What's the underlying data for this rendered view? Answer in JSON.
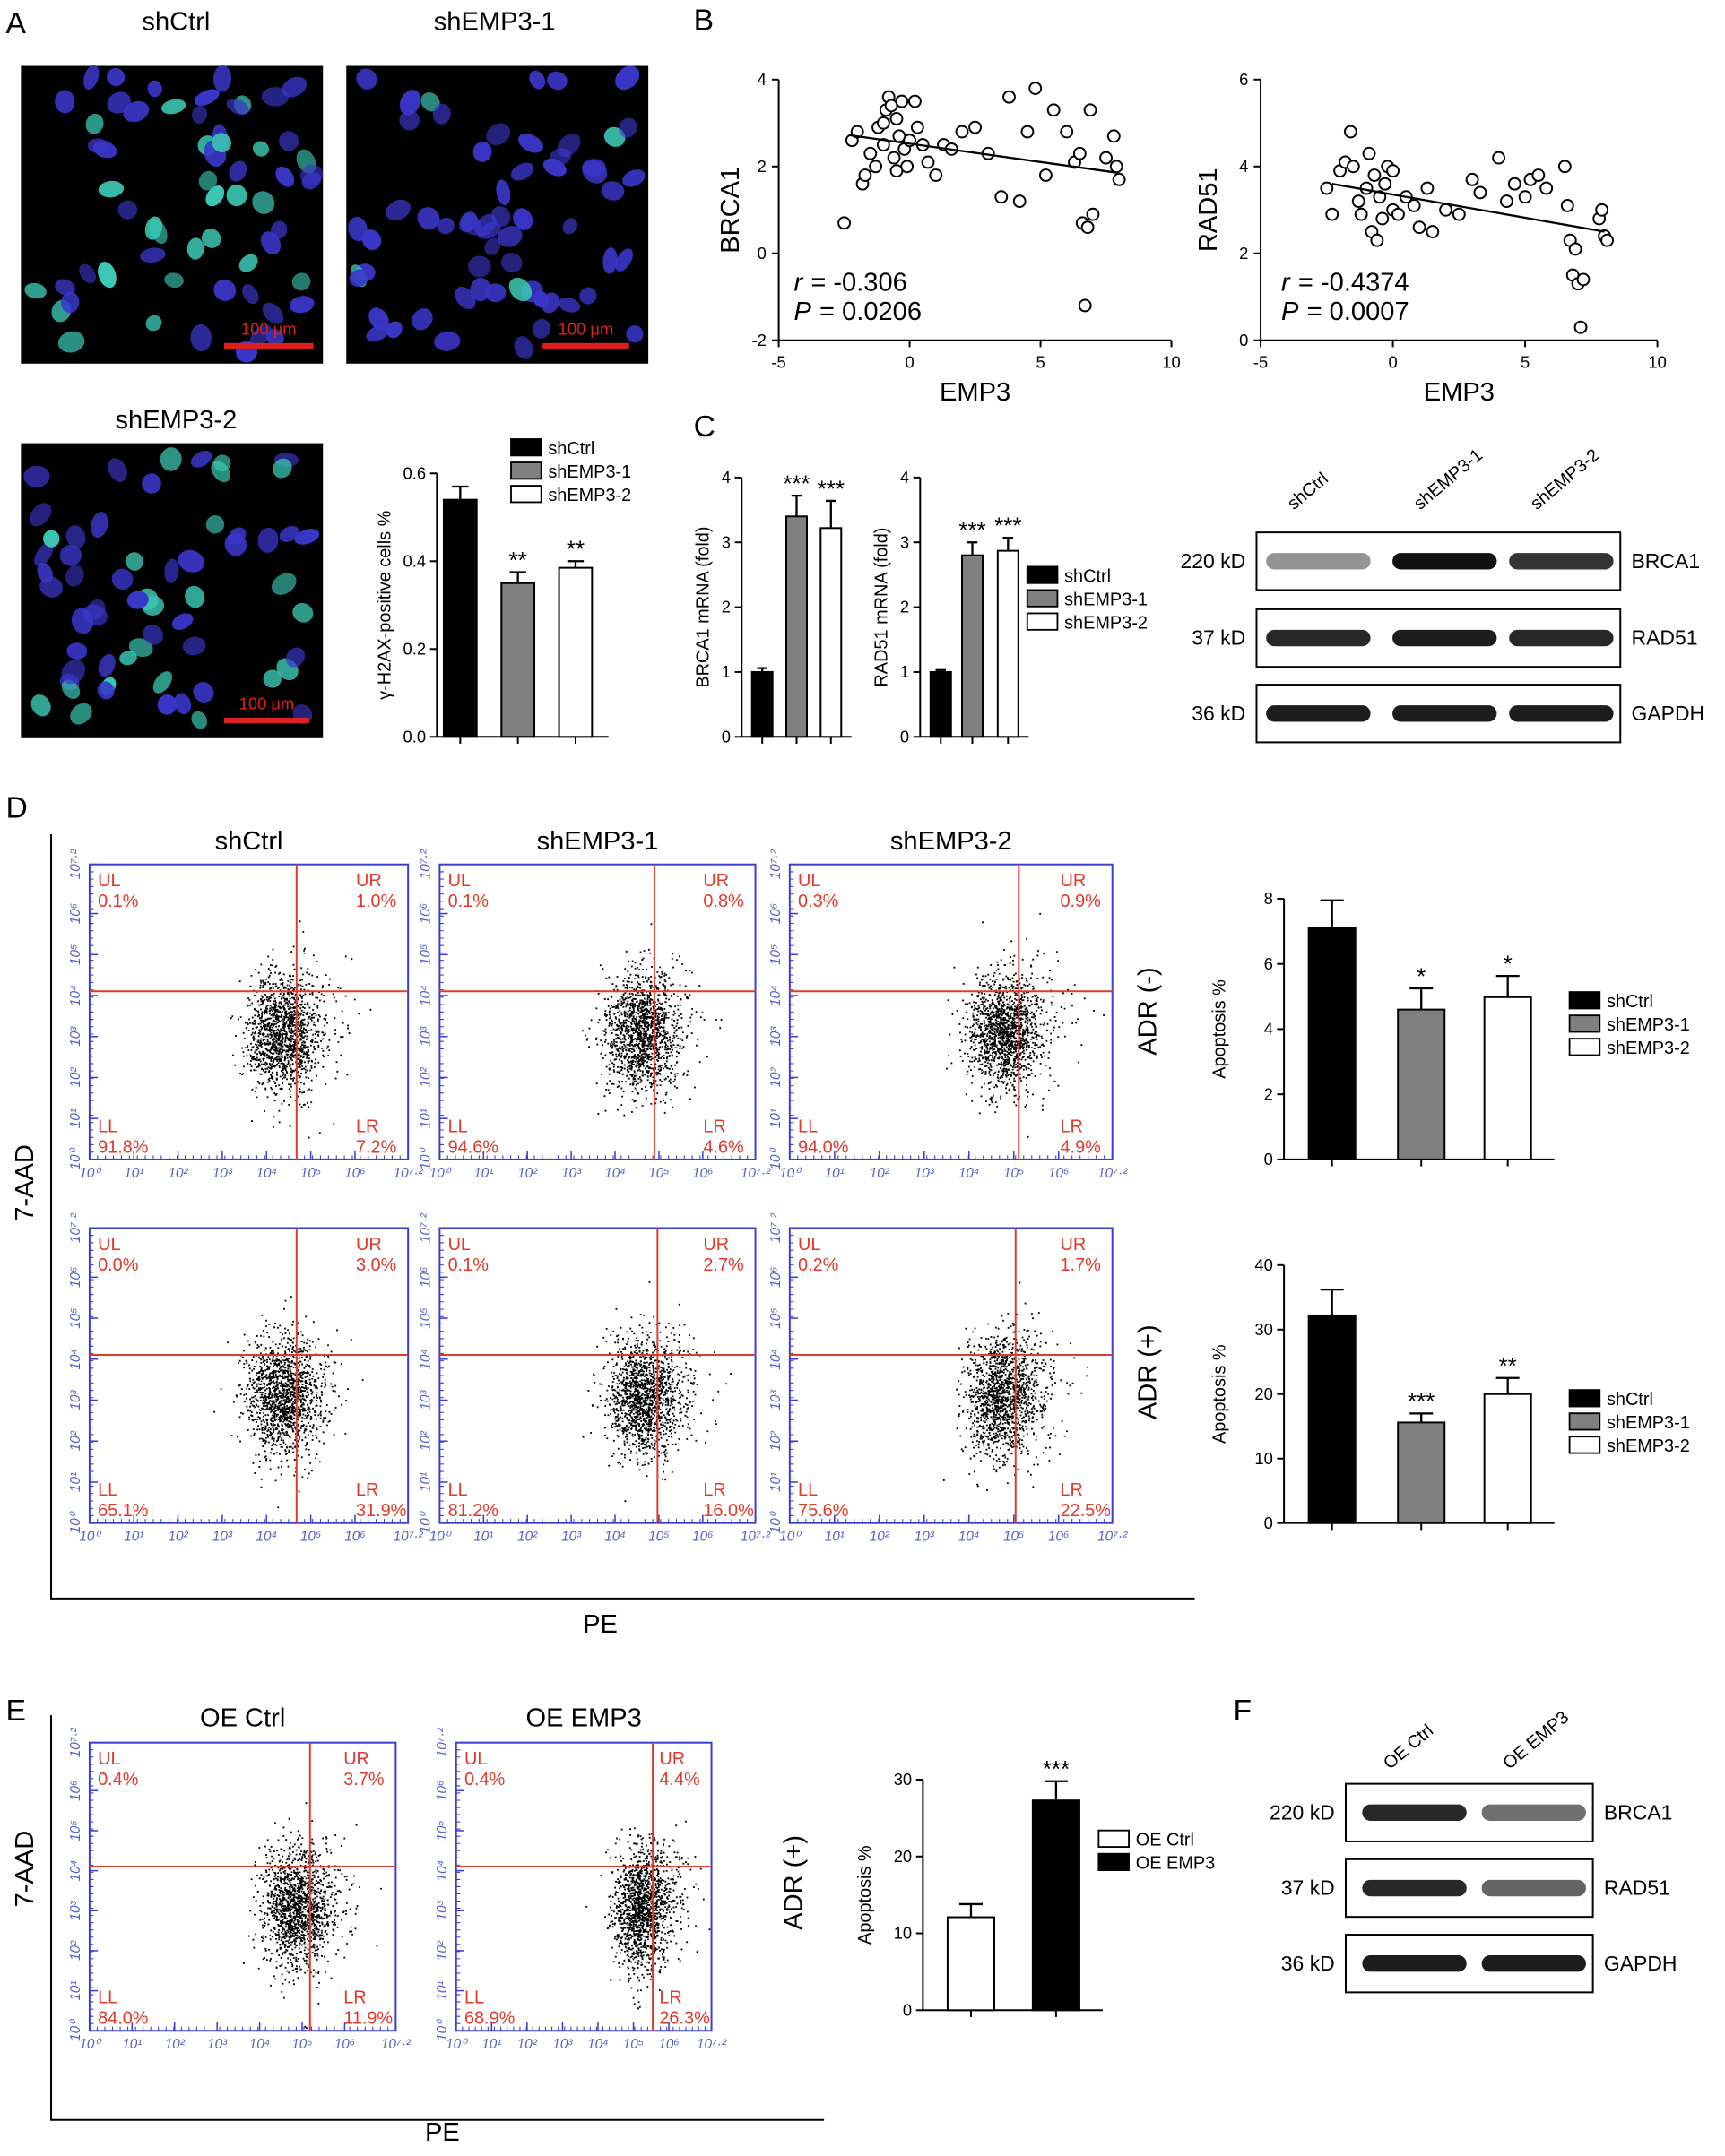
{
  "panel_labels": [
    "A",
    "B",
    "C",
    "D",
    "E",
    "F"
  ],
  "panel_a": {
    "image_titles": [
      "shCtrl",
      "shEMP3-1",
      "shEMP3-2"
    ],
    "scale_bar": "100 μm"
  },
  "chart_data": [
    {
      "type": "bar",
      "ylabel": "γ-H2AX-positive cells %",
      "categories": [
        "shCtrl",
        "shEMP3-1",
        "shEMP3-2"
      ],
      "values": [
        0.54,
        0.35,
        0.385
      ],
      "errors": [
        0.03,
        0.025,
        0.015
      ],
      "colors": [
        "#000000",
        "#808080",
        "#ffffff"
      ],
      "significance": [
        null,
        "**",
        "**"
      ],
      "ylim": [
        0,
        0.6
      ],
      "yticks": [
        {
          "value": 0,
          "label": "0.0"
        },
        0.2,
        0.4,
        0.6
      ],
      "legend": true
    },
    {
      "type": "scatter",
      "xlabel": "EMP3",
      "ylabel": "BRCA1",
      "x": [
        -2.5,
        -2.2,
        -2,
        -1.8,
        -1.7,
        -1.5,
        -1.3,
        -1.2,
        -1,
        -1,
        -0.9,
        -0.8,
        -0.7,
        -0.6,
        -0.5,
        -0.5,
        -0.4,
        -0.3,
        -0.2,
        -0.1,
        0,
        0.2,
        0.3,
        0.5,
        0.7,
        1,
        1.3,
        1.6,
        2,
        2.5,
        3,
        3.5,
        3.8,
        4.2,
        4.5,
        4.8,
        5.2,
        5.5,
        6,
        6.3,
        6.5,
        6.6,
        6.7,
        6.8,
        6.9,
        7,
        7.5,
        7.8,
        7.9,
        8
      ],
      "values": [
        0.7,
        2.6,
        2.8,
        1.6,
        1.8,
        2.3,
        2,
        2.9,
        2.5,
        3,
        3.3,
        3.6,
        3.4,
        2.2,
        1.9,
        3.1,
        2.7,
        3.5,
        2.4,
        2,
        2.6,
        3.5,
        2.9,
        2.5,
        2.1,
        1.8,
        2.5,
        2.4,
        2.8,
        2.9,
        2.3,
        1.3,
        3.6,
        1.2,
        2.8,
        3.8,
        1.8,
        3.3,
        2.8,
        2.1,
        2.3,
        0.7,
        -1.2,
        0.6,
        3.3,
        0.9,
        2.2,
        2.7,
        2,
        1.7
      ],
      "xlim": [
        -5,
        10
      ],
      "xticks": [
        -5,
        0,
        5,
        10
      ],
      "ylim": [
        -2,
        4
      ],
      "yticks": [
        -2,
        0,
        2,
        4
      ],
      "fit_line": {
        "x": [
          -2.3,
          8
        ],
        "y": [
          2.72,
          1.85
        ]
      },
      "stats": [
        {
          "symbol": "r",
          "text": "= -0.306"
        },
        {
          "symbol": "P",
          "text": "= 0.0206"
        }
      ]
    },
    {
      "type": "scatter",
      "xlabel": "EMP3",
      "ylabel": "RAD51",
      "x": [
        -2.5,
        -2.3,
        -2,
        -1.8,
        -1.6,
        -1.5,
        -1.3,
        -1.2,
        -1,
        -0.9,
        -0.8,
        -0.7,
        -0.6,
        -0.5,
        -0.4,
        -0.3,
        -0.2,
        0,
        0,
        0.2,
        0.5,
        0.8,
        1,
        1.3,
        1.5,
        2,
        2.5,
        3,
        3.3,
        4,
        4.3,
        4.6,
        5,
        5.2,
        5.5,
        5.8,
        6.5,
        6.6,
        6.7,
        6.8,
        6.9,
        7,
        7.1,
        7.2,
        7.8,
        7.9,
        8,
        8.1
      ],
      "values": [
        3.5,
        2.9,
        3.9,
        4.1,
        4.8,
        4,
        3.2,
        2.9,
        3.5,
        4.3,
        2.5,
        3.8,
        2.3,
        3.3,
        2.8,
        3.6,
        4,
        3,
        3.9,
        2.9,
        3.3,
        3.1,
        2.6,
        3.5,
        2.5,
        3,
        2.9,
        3.7,
        3.4,
        4.2,
        3.2,
        3.6,
        3.3,
        3.7,
        3.8,
        3.5,
        4,
        3.1,
        2.3,
        1.5,
        2.1,
        1.3,
        0.3,
        1.4,
        2.8,
        3,
        2.4,
        2.3
      ],
      "xlim": [
        -5,
        10
      ],
      "xticks": [
        -5,
        0,
        5,
        10
      ],
      "ylim": [
        0,
        6
      ],
      "yticks": [
        0,
        2,
        4,
        6
      ],
      "fit_line": {
        "x": [
          -2.3,
          8
        ],
        "y": [
          3.6,
          2.5
        ]
      },
      "stats": [
        {
          "symbol": "r",
          "text": "= -0.4374"
        },
        {
          "symbol": "P",
          "text": "= 0.0007"
        }
      ]
    },
    {
      "type": "bar",
      "ylabel": "BRCA1 mRNA (fold)",
      "categories": [
        "shCtrl",
        "shEMP3-1",
        "shEMP3-2"
      ],
      "values": [
        1,
        3.4,
        3.22
      ],
      "errors": [
        0.06,
        0.32,
        0.42
      ],
      "colors": [
        "#000000",
        "#808080",
        "#ffffff"
      ],
      "significance": [
        null,
        "***",
        "***"
      ],
      "ylim": [
        0,
        4
      ],
      "yticks": [
        0,
        1,
        2,
        3,
        4
      ],
      "legend": false
    },
    {
      "type": "bar",
      "ylabel": "RAD51 mRNA (fold)",
      "categories": [
        "shCtrl",
        "shEMP3-1",
        "shEMP3-2"
      ],
      "values": [
        1,
        2.8,
        2.87
      ],
      "errors": [
        0.03,
        0.2,
        0.2
      ],
      "colors": [
        "#000000",
        "#808080",
        "#ffffff"
      ],
      "significance": [
        null,
        "***",
        "***"
      ],
      "ylim": [
        0,
        4
      ],
      "yticks": [
        0,
        1,
        2,
        3,
        4
      ],
      "legend": true
    },
    {
      "type": "bar",
      "ylabel": "Apoptosis %",
      "categories": [
        "shCtrl",
        "shEMP3-1",
        "shEMP3-2"
      ],
      "values": [
        7.1,
        4.6,
        4.98
      ],
      "errors": [
        0.85,
        0.65,
        0.65
      ],
      "colors": [
        "#000000",
        "#808080",
        "#ffffff"
      ],
      "significance": [
        null,
        "*",
        "*"
      ],
      "ylim": [
        0,
        8
      ],
      "yticks": [
        0,
        2,
        4,
        6,
        8
      ],
      "legend": true
    },
    {
      "type": "bar",
      "ylabel": "Apoptosis %",
      "categories": [
        "shCtrl",
        "shEMP3-1",
        "shEMP3-2"
      ],
      "values": [
        32.2,
        15.6,
        20
      ],
      "errors": [
        4,
        1.4,
        2.5
      ],
      "colors": [
        "#000000",
        "#808080",
        "#ffffff"
      ],
      "significance": [
        null,
        "***",
        "**"
      ],
      "ylim": [
        0,
        40
      ],
      "yticks": [
        0,
        10,
        20,
        30,
        40
      ],
      "legend": true
    },
    {
      "type": "bar",
      "ylabel": "Apoptosis %",
      "categories": [
        "OE Ctrl",
        "OE EMP3"
      ],
      "values": [
        12.1,
        27.3
      ],
      "errors": [
        1.7,
        2.5
      ],
      "colors": [
        "#ffffff",
        "#000000"
      ],
      "significance": [
        null,
        "***"
      ],
      "ylim": [
        0,
        30
      ],
      "yticks": [
        0,
        10,
        20,
        30
      ],
      "legend": true
    }
  ],
  "panel_c_blot": {
    "lanes": [
      "shCtrl",
      "shEMP3-1",
      "shEMP3-2"
    ],
    "rows": [
      {
        "size": "220 kD",
        "protein": "BRCA1"
      },
      {
        "size": "37 kD",
        "protein": "RAD51"
      },
      {
        "size": "36 kD",
        "protein": "GAPDH"
      }
    ]
  },
  "flow_axes": {
    "x_label": "PE",
    "y_label": "7-AAD",
    "quadrant_names": [
      "UL",
      "UR",
      "LL",
      "LR"
    ],
    "ticks": [
      {
        "value": 0,
        "label": "10⁰"
      },
      {
        "value": 1,
        "label": "10¹"
      },
      {
        "value": 2,
        "label": "10²"
      },
      {
        "value": 3,
        "label": "10³"
      },
      {
        "value": 4,
        "label": "10⁴"
      },
      {
        "value": 5,
        "label": "10⁵"
      },
      {
        "value": 6,
        "label": "10⁶"
      },
      {
        "value": 7.2,
        "label": "10⁷·²"
      }
    ]
  },
  "panel_d": {
    "titles": [
      "shCtrl",
      "shEMP3-1",
      "shEMP3-2"
    ],
    "conditions": [
      "ADR (-)",
      "ADR (+)"
    ],
    "plots": [
      [
        [
          "0.1%",
          "1.0%",
          "91.8%",
          "7.2%"
        ],
        [
          "0.1%",
          "0.8%",
          "94.6%",
          "4.6%"
        ],
        [
          "0.3%",
          "0.9%",
          "94.0%",
          "4.9%"
        ]
      ],
      [
        [
          "0.0%",
          "3.0%",
          "65.1%",
          "31.9%"
        ],
        [
          "0.1%",
          "2.7%",
          "81.2%",
          "16.0%"
        ],
        [
          "0.2%",
          "1.7%",
          "75.6%",
          "22.5%"
        ]
      ]
    ]
  },
  "panel_e": {
    "titles": [
      "OE Ctrl",
      "OE EMP3"
    ],
    "condition": "ADR (+)",
    "plots": [
      [
        "0.4%",
        "3.7%",
        "84.0%",
        "11.9%"
      ],
      [
        "0.4%",
        "4.4%",
        "68.9%",
        "26.3%"
      ]
    ]
  },
  "panel_f_blot": {
    "lanes": [
      "OE Ctrl",
      "OE EMP3"
    ],
    "rows": [
      {
        "size": "220 kD",
        "protein": "BRCA1"
      },
      {
        "size": "37 kD",
        "protein": "RAD51"
      },
      {
        "size": "36 kD",
        "protein": "GAPDH"
      }
    ]
  }
}
